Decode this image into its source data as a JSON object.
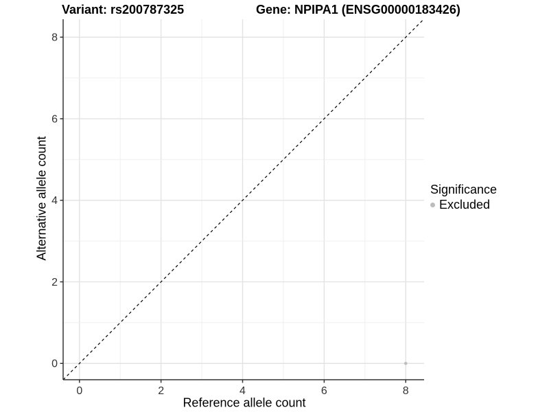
{
  "chart_data": {
    "type": "scatter",
    "title_left": "Variant: rs200787325",
    "title_right": "Gene: NPIPA1 (ENSG00000183426)",
    "xlabel": "Reference allele count",
    "ylabel": "Alternative allele count",
    "xlim": [
      -0.4,
      8.45
    ],
    "ylim": [
      -0.4,
      8.44
    ],
    "xticks": [
      0,
      2,
      4,
      6,
      8
    ],
    "yticks": [
      0,
      2,
      4,
      6,
      8
    ],
    "grid": "on",
    "grid_interval": 1,
    "identity_line": {
      "style": "dashed",
      "color": "#000000",
      "from": [
        -0.4,
        -0.4
      ],
      "to": [
        8.44,
        8.44
      ]
    },
    "series": [
      {
        "name": "Excluded",
        "color": "#bdbdbd",
        "points": [
          {
            "x": 8,
            "y": 0
          }
        ]
      }
    ],
    "legend": {
      "title": "Significance",
      "position": "right",
      "entries": [
        {
          "label": "Excluded",
          "color": "#bdbdbd"
        }
      ]
    },
    "colors": {
      "grid_major": "#e3e3e3",
      "grid_minor": "#eeeeee",
      "axis_line": "#333333",
      "tick_text": "#333333",
      "background": "#ffffff"
    }
  }
}
